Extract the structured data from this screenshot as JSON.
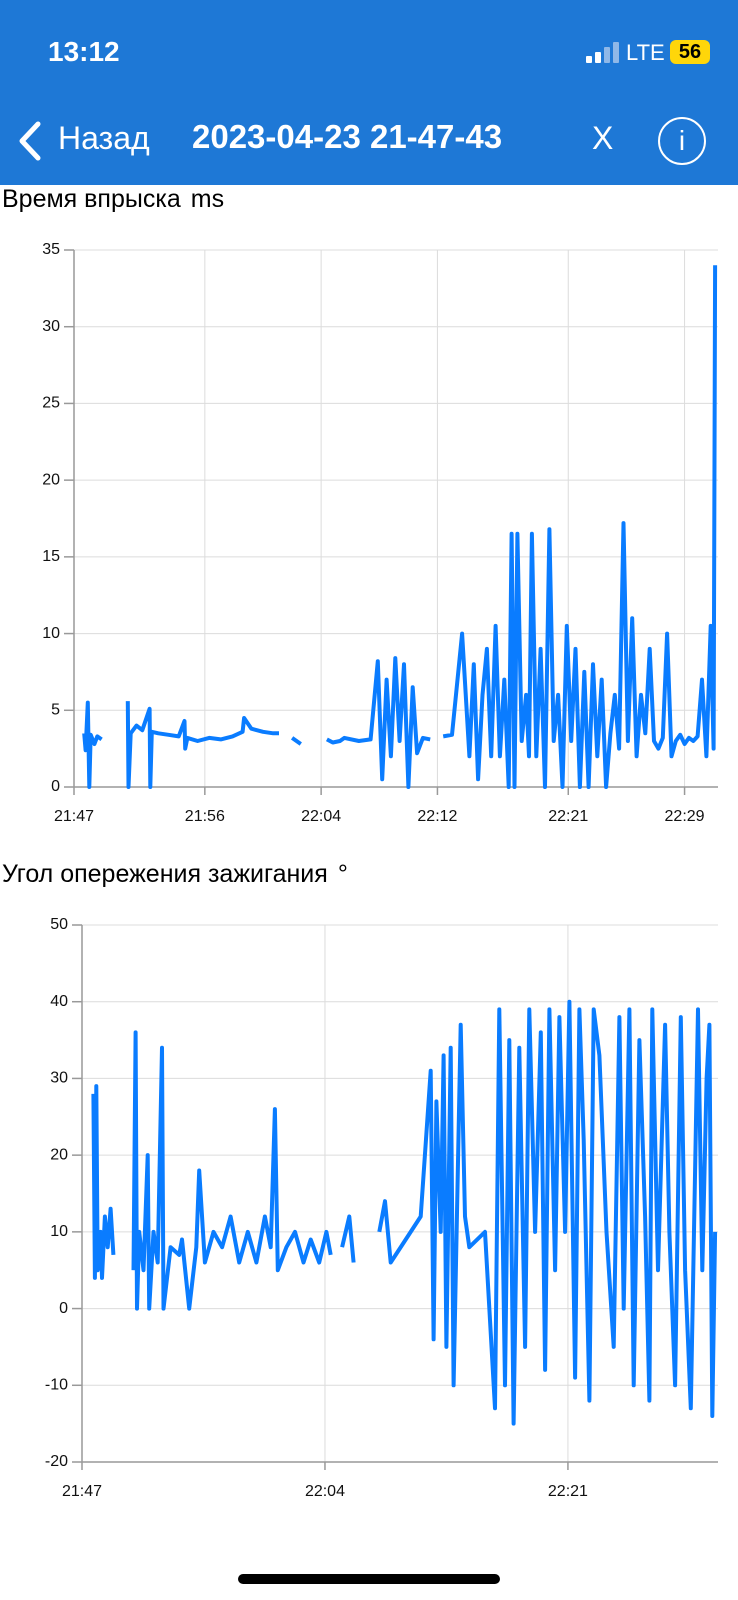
{
  "status_bar": {
    "time": "13:12",
    "network": "LTE",
    "battery": "56"
  },
  "nav_bar": {
    "back": "Назад",
    "title": "2023-04-23 21-47-43",
    "close": "X",
    "info": "i"
  },
  "chart_data": [
    {
      "type": "line",
      "title": "Время впрыска",
      "unit": "ms",
      "x": [
        1307.7,
        1307.8,
        1307.95,
        1308.05,
        1308.15,
        1308.4,
        1308.6,
        1308.9,
        1309.5,
        1310.7,
        1310.75,
        1310.9,
        1311.3,
        1311.7,
        1312.2,
        1312.25,
        1312.35,
        1312.8,
        1313.5,
        1314.2,
        1314.6,
        1314.65,
        1314.8,
        1315.5,
        1316.3,
        1317.1,
        1317.9,
        1318.6,
        1318.7,
        1319.2,
        1320.0,
        1320.7,
        1321.1,
        1321.6,
        1322.0,
        1322.6,
        1323.2,
        1323.25,
        1323.8,
        1324.4,
        1324.8,
        1325.3,
        1325.6,
        1326.6,
        1327.4,
        1327.9,
        1328.2,
        1328.5,
        1328.8,
        1329.1,
        1329.4,
        1329.7,
        1330.0,
        1330.3,
        1330.6,
        1331.0,
        1331.5,
        1332.3,
        1332.4,
        1333.0,
        1333.7,
        1334.2,
        1334.5,
        1334.8,
        1335.1,
        1335.4,
        1335.7,
        1336.0,
        1336.3,
        1336.6,
        1336.9,
        1337.1,
        1337.3,
        1337.5,
        1337.8,
        1338.1,
        1338.3,
        1338.5,
        1338.8,
        1339.1,
        1339.4,
        1339.7,
        1340.0,
        1340.3,
        1340.6,
        1340.9,
        1341.2,
        1341.5,
        1341.8,
        1342.1,
        1342.4,
        1342.7,
        1343.0,
        1343.3,
        1343.6,
        1343.9,
        1344.2,
        1344.5,
        1344.8,
        1345.1,
        1345.4,
        1345.7,
        1346.0,
        1346.3,
        1346.6,
        1346.9,
        1347.2,
        1347.5,
        1347.8,
        1348.1,
        1348.4,
        1348.7,
        1349.0,
        1349.3,
        1349.6,
        1349.9,
        1350.2,
        1350.5,
        1350.8,
        1351.0,
        1351.1
      ],
      "values": [
        3.5,
        2.4,
        5.5,
        0,
        3.4,
        2.8,
        3.3,
        3.1,
        null,
        5.6,
        0,
        3.5,
        4.0,
        3.7,
        5.1,
        0,
        3.6,
        3.5,
        3.4,
        3.3,
        4.3,
        2.5,
        3.2,
        3.0,
        3.2,
        3.1,
        3.3,
        3.6,
        4.5,
        3.8,
        3.6,
        3.5,
        3.5,
        null,
        3.2,
        2.8,
        null,
        3.0,
        null,
        3.1,
        2.9,
        3.0,
        3.2,
        3.0,
        3.1,
        8.2,
        0.5,
        7.0,
        2.0,
        8.4,
        3.0,
        8.0,
        0,
        6.5,
        2.2,
        3.2,
        3.1,
        null,
        3.3,
        3.4,
        10.0,
        2.0,
        8.0,
        0.5,
        6.0,
        9.0,
        2.0,
        10.5,
        2.0,
        7.0,
        0,
        16.5,
        0,
        16.5,
        3.0,
        6.0,
        2.0,
        16.5,
        2.0,
        9.0,
        0,
        16.8,
        3.0,
        6.0,
        0,
        10.5,
        3.0,
        9.0,
        0,
        7.5,
        0,
        8.0,
        2.0,
        7.0,
        0,
        3.5,
        6.0,
        2.5,
        17.2,
        3.0,
        11.0,
        2.0,
        6.0,
        3.5,
        9.0,
        3.0,
        2.5,
        3.2,
        10.0,
        2.0,
        3.0,
        3.4,
        2.8,
        3.2,
        3.0,
        3.3,
        7.0,
        2.0,
        10.5,
        2.5,
        34.0
      ],
      "color": "#0a7cff",
      "grid": true,
      "xlim": [
        1307,
        1351.3
      ],
      "xticks": [
        {
          "value": 1307,
          "label": "21:47"
        },
        {
          "value": 1316,
          "label": "21:56"
        },
        {
          "value": 1324,
          "label": "22:04"
        },
        {
          "value": 1332,
          "label": "22:12"
        },
        {
          "value": 1341,
          "label": "22:21"
        },
        {
          "value": 1349,
          "label": "22:29"
        }
      ],
      "ylim": [
        0,
        35
      ],
      "yticks": [
        0,
        5,
        10,
        15,
        20,
        25,
        30,
        35
      ]
    },
    {
      "type": "line",
      "title": "Угол опережения зажигания",
      "unit": "°",
      "x": [
        1307.8,
        1307.9,
        1308.0,
        1308.1,
        1308.3,
        1308.4,
        1308.6,
        1308.8,
        1309.0,
        1309.2,
        1309.6,
        1310.6,
        1310.75,
        1310.85,
        1311.0,
        1311.3,
        1311.6,
        1311.7,
        1312.0,
        1312.3,
        1312.6,
        1312.7,
        1313.2,
        1313.8,
        1314.0,
        1314.5,
        1315.0,
        1315.2,
        1315.6,
        1316.2,
        1316.8,
        1317.4,
        1318.0,
        1318.6,
        1319.2,
        1319.8,
        1320.2,
        1320.5,
        1320.7,
        1321.3,
        1321.9,
        1322.5,
        1323.0,
        1323.6,
        1324.1,
        1324.4,
        1324.7,
        1325.2,
        1325.7,
        1326.0,
        1326.3,
        1327.0,
        1327.3,
        1327.8,
        1328.2,
        1328.6,
        1330.0,
        1330.7,
        1331.4,
        1331.6,
        1331.8,
        1332.1,
        1332.3,
        1332.5,
        1332.8,
        1333.0,
        1333.5,
        1333.8,
        1334.1,
        1335.2,
        1335.9,
        1336.2,
        1336.6,
        1336.9,
        1337.2,
        1337.6,
        1338.0,
        1338.3,
        1338.7,
        1339.1,
        1339.4,
        1339.7,
        1340.1,
        1340.4,
        1340.8,
        1341.1,
        1341.5,
        1341.8,
        1342.1,
        1342.5,
        1342.8,
        1343.2,
        1343.7,
        1344.2,
        1344.6,
        1344.9,
        1345.3,
        1345.6,
        1346.0,
        1346.4,
        1346.7,
        1346.9,
        1347.3,
        1347.8,
        1348.1,
        1348.5,
        1348.9,
        1349.2,
        1349.6,
        1350.1,
        1350.4,
        1350.7,
        1350.9,
        1351.1,
        1351.3
      ],
      "values": [
        28,
        4,
        29,
        5,
        10,
        4,
        12,
        8,
        13,
        7,
        null,
        5,
        36,
        0,
        10,
        5,
        20,
        0,
        10,
        6,
        34,
        0,
        8,
        7,
        9,
        0,
        8,
        18,
        6,
        10,
        8,
        12,
        6,
        10,
        6,
        12,
        8,
        26,
        5,
        8,
        10,
        6,
        9,
        6,
        10,
        7,
        null,
        8,
        12,
        6,
        null,
        8,
        null,
        10,
        14,
        6,
        10,
        12,
        31,
        -4,
        27,
        10,
        33,
        -5,
        34,
        -10,
        37,
        12,
        8,
        10,
        -13,
        39,
        -10,
        35,
        -15,
        34,
        -5,
        39,
        10,
        36,
        -8,
        39,
        5,
        38,
        10,
        40,
        -9,
        39,
        22,
        -12,
        39,
        33,
        10,
        -5,
        38,
        0,
        39,
        -10,
        35,
        12,
        -12,
        39,
        5,
        37,
        10,
        -10,
        38,
        5,
        -13,
        39,
        5,
        30,
        37,
        -14,
        10
      ],
      "color": "#0a7cff",
      "grid": true,
      "xlim": [
        1307,
        1351.5
      ],
      "xticks": [
        {
          "value": 1307,
          "label": "21:47"
        },
        {
          "value": 1324,
          "label": "22:04"
        },
        {
          "value": 1341,
          "label": "22:21"
        }
      ],
      "ylim": [
        -20,
        50
      ],
      "yticks": [
        -20,
        -10,
        0,
        10,
        20,
        30,
        40,
        50
      ]
    }
  ]
}
